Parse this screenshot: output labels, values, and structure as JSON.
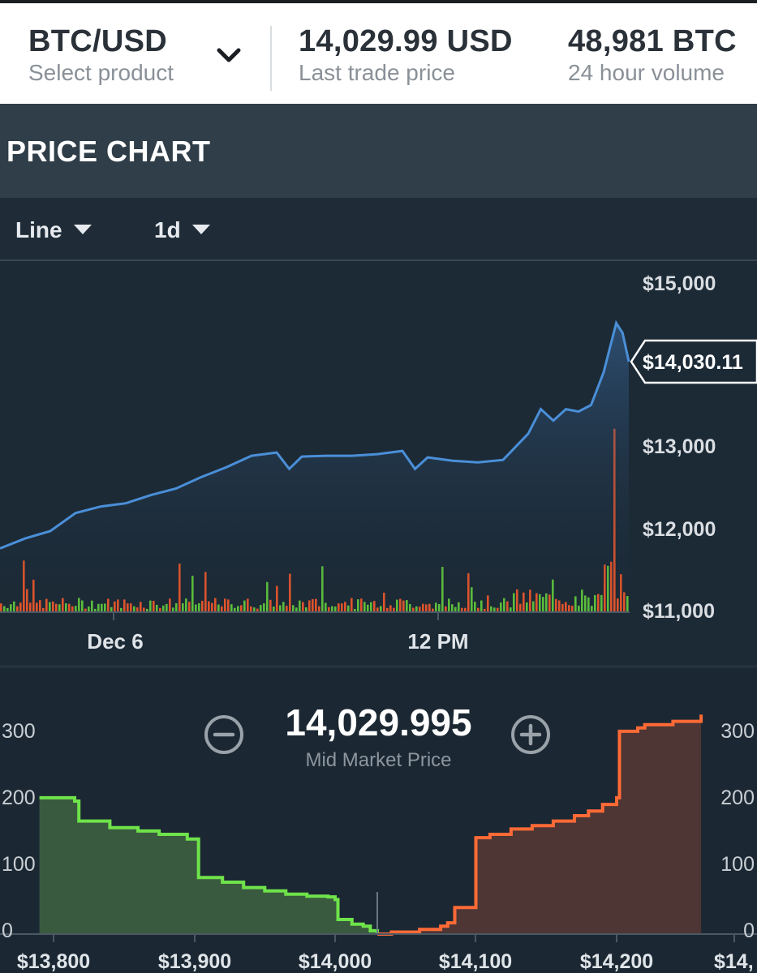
{
  "header": {
    "product": "BTC/USD",
    "product_label": "Select product",
    "last_price": "14,029.99 USD",
    "last_price_label": "Last trade price",
    "volume": "48,981 BTC",
    "volume_label": "24 hour volume"
  },
  "panel": {
    "title": "PRICE CHART"
  },
  "toolbar": {
    "chart_type": "Line",
    "interval": "1d"
  },
  "colors": {
    "line": "#4a8fd8",
    "buy": "#6fe34a",
    "sell": "#ff6a36",
    "buy_fill": "#3a5a3f",
    "sell_fill": "#4d3634",
    "vol_green": "#5cbf3c",
    "vol_red": "#e2542c"
  },
  "chart_data": [
    {
      "type": "line",
      "x_ticks": [
        "Dec 6",
        "12 PM"
      ],
      "y_ticks": [
        "$15,000",
        "$13,000",
        "$12,000",
        "$11,000"
      ],
      "ylim": [
        11000,
        15000
      ],
      "current_price_label": "$14,030.11",
      "series": [
        {
          "x": [
            0,
            4,
            8,
            12,
            16,
            20,
            24,
            28,
            32,
            36,
            40,
            44,
            46,
            48,
            52,
            56,
            60,
            64,
            66,
            68,
            72,
            76,
            80,
            84,
            86,
            88,
            90,
            92,
            94,
            96,
            98,
            99,
            100
          ],
          "values": [
            11750,
            11870,
            11960,
            12180,
            12260,
            12300,
            12400,
            12480,
            12620,
            12740,
            12880,
            12920,
            12720,
            12870,
            12880,
            12880,
            12900,
            12940,
            12720,
            12860,
            12820,
            12800,
            12830,
            13150,
            13450,
            13310,
            13450,
            13420,
            13500,
            13900,
            14500,
            14380,
            14030
          ]
        }
      ]
    },
    {
      "type": "area",
      "title": "",
      "mid_price": "14,029.995",
      "mid_price_label": "Mid Market Price",
      "x_ticks": [
        "$13,800",
        "$13,900",
        "$14,000",
        "$14,100",
        "$14,200",
        "$14,"
      ],
      "y_ticks": [
        "300",
        "200",
        "100",
        "0"
      ],
      "xlim": [
        13800,
        14250
      ],
      "ylim": [
        0,
        340
      ],
      "series": [
        {
          "name": "",
          "x": [
            13790,
            13815,
            13818,
            13840,
            13860,
            13875,
            13895,
            13900,
            13903,
            13920,
            13935,
            13950,
            13965,
            13980,
            13995,
            14000,
            14002,
            14012,
            14020,
            14025,
            14029.99
          ],
          "values": [
            205,
            200,
            170,
            160,
            155,
            150,
            143,
            143,
            85,
            78,
            70,
            65,
            60,
            57,
            56,
            52,
            22,
            15,
            12,
            5,
            0
          ]
        },
        {
          "name": "",
          "x": [
            14030,
            14040,
            14060,
            14075,
            14080,
            14085,
            14100,
            14110,
            14125,
            14140,
            14155,
            14170,
            14180,
            14190,
            14200,
            14202,
            14215,
            14220,
            14240,
            14260
          ],
          "values": [
            0,
            3,
            7,
            12,
            17,
            40,
            145,
            150,
            158,
            163,
            170,
            178,
            185,
            195,
            205,
            305,
            310,
            315,
            320,
            330
          ]
        }
      ]
    }
  ]
}
